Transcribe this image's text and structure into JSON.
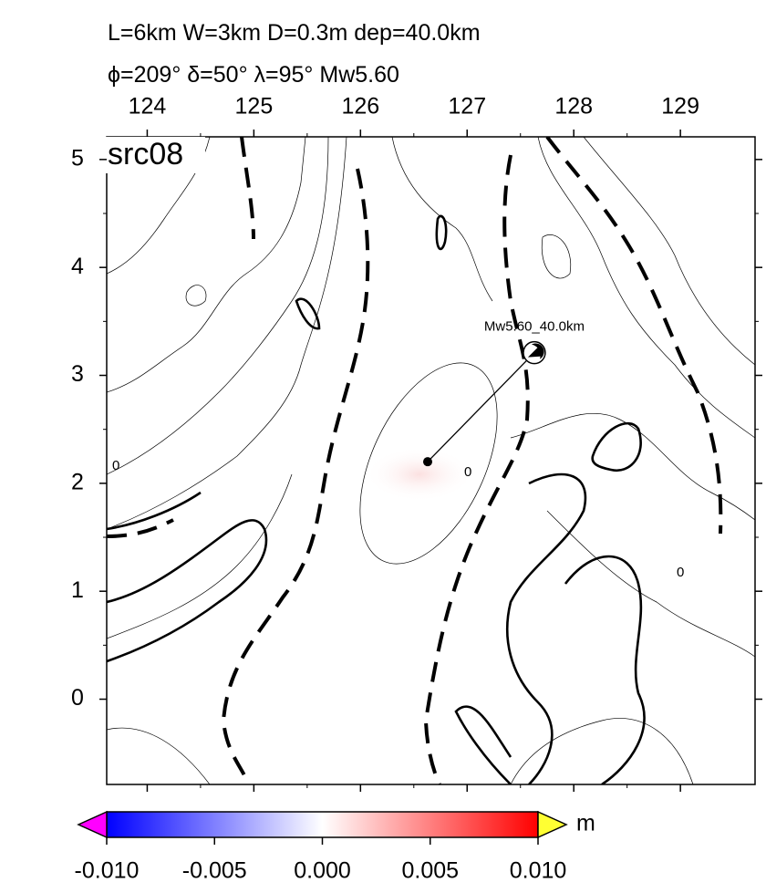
{
  "chart_data": {
    "type": "map",
    "title": "L=6km W=3km D=0.3m dep=40.0km",
    "subtitle": "ϕ=209° δ=50° λ=95° Mw5.60",
    "panel_label": "src08",
    "xlim": [
      123.62,
      129.7
    ],
    "ylim": [
      -0.79,
      5.21
    ],
    "xticks": [
      124,
      125,
      126,
      127,
      128,
      129
    ],
    "yticks": [
      0,
      1,
      2,
      3,
      4,
      5
    ],
    "epicenter": {
      "label": "Mw5.60_40.0km",
      "lon": 127.63,
      "lat": 3.21
    },
    "fault_center": {
      "lon": 126.63,
      "lat": 2.2
    },
    "contour_labels": [
      "0",
      "0",
      "0"
    ],
    "colorbar": {
      "unit": "m",
      "range": [
        -0.01,
        0.01
      ],
      "ticks": [
        {
          "value": -0.01,
          "label": "-0.010"
        },
        {
          "value": -0.005,
          "label": "-0.005"
        },
        {
          "value": 0,
          "label": "0.000"
        },
        {
          "value": 0.005,
          "label": "0.005"
        },
        {
          "value": 0.01,
          "label": "0.010"
        }
      ]
    }
  }
}
